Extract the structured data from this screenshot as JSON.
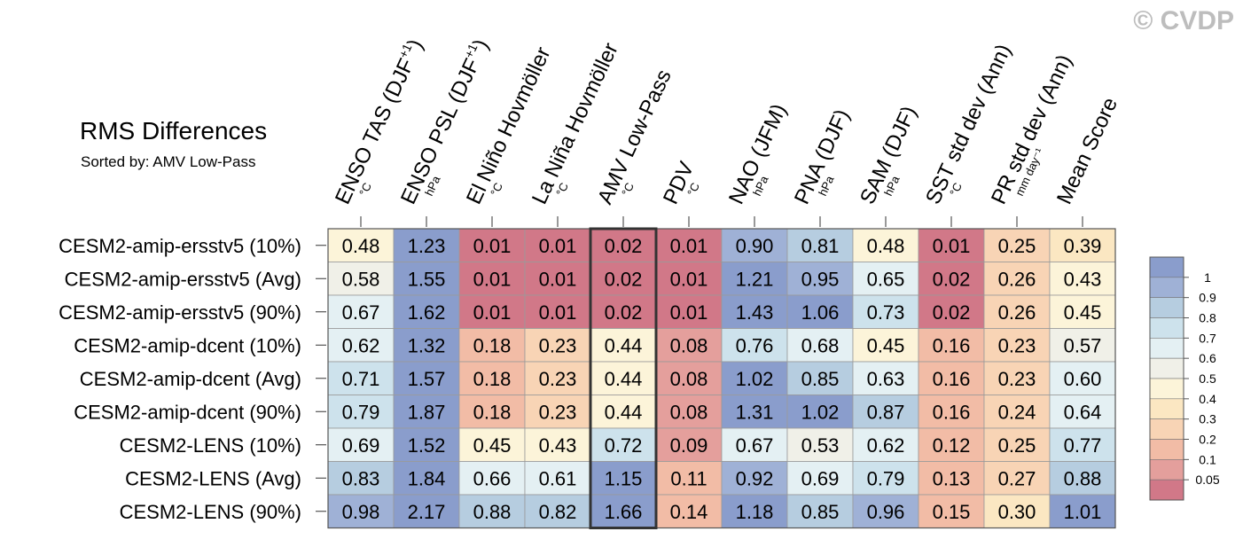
{
  "watermark": "© CVDP",
  "title": "RMS Differences",
  "subtitle": "Sorted by: AMV Low-Pass",
  "chart_data": {
    "type": "heatmap",
    "title": "RMS Differences",
    "subtitle": "Sorted by: AMV Low-Pass",
    "highlight_column": "AMV Low-Pass",
    "columns": [
      {
        "label": "ENSO TAS (DJF",
        "sup": "+1",
        "tail": ")",
        "unit": "°C"
      },
      {
        "label": "ENSO PSL (DJF",
        "sup": "+1",
        "tail": ")",
        "unit": "hPa"
      },
      {
        "label": "El Niño Hovmöller",
        "sup": "",
        "tail": "",
        "unit": "°C"
      },
      {
        "label": "La Niña Hovmöller",
        "sup": "",
        "tail": "",
        "unit": "°C"
      },
      {
        "label": "AMV Low-Pass",
        "sup": "",
        "tail": "",
        "unit": "°C"
      },
      {
        "label": "PDV",
        "sup": "",
        "tail": "",
        "unit": "°C"
      },
      {
        "label": "NAO (JFM)",
        "sup": "",
        "tail": "",
        "unit": "hPa"
      },
      {
        "label": "PNA (DJF)",
        "sup": "",
        "tail": "",
        "unit": "hPa"
      },
      {
        "label": "SAM (DJF)",
        "sup": "",
        "tail": "",
        "unit": "hPa"
      },
      {
        "label": "SST std dev (Ann)",
        "sup": "",
        "tail": "",
        "unit": "°C"
      },
      {
        "label": "PR std dev (Ann)",
        "sup": "",
        "tail": "",
        "unit": "mm day⁻¹"
      },
      {
        "label": "Mean Score",
        "sup": "",
        "tail": "",
        "unit": ""
      }
    ],
    "rows": [
      {
        "label": "CESM2-amip-ersstv5 (10%)",
        "values": [
          "0.48",
          "1.23",
          "0.01",
          "0.01",
          "0.02",
          "0.01",
          "0.90",
          "0.81",
          "0.48",
          "0.01",
          "0.25",
          "0.39"
        ]
      },
      {
        "label": "CESM2-amip-ersstv5 (Avg)",
        "values": [
          "0.58",
          "1.55",
          "0.01",
          "0.01",
          "0.02",
          "0.01",
          "1.21",
          "0.95",
          "0.65",
          "0.02",
          "0.26",
          "0.43"
        ]
      },
      {
        "label": "CESM2-amip-ersstv5 (90%)",
        "values": [
          "0.67",
          "1.62",
          "0.01",
          "0.01",
          "0.02",
          "0.01",
          "1.43",
          "1.06",
          "0.73",
          "0.02",
          "0.26",
          "0.45"
        ]
      },
      {
        "label": "CESM2-amip-dcent (10%)",
        "values": [
          "0.62",
          "1.32",
          "0.18",
          "0.23",
          "0.44",
          "0.08",
          "0.76",
          "0.68",
          "0.45",
          "0.16",
          "0.23",
          "0.57"
        ]
      },
      {
        "label": "CESM2-amip-dcent (Avg)",
        "values": [
          "0.71",
          "1.57",
          "0.18",
          "0.23",
          "0.44",
          "0.08",
          "1.02",
          "0.85",
          "0.63",
          "0.16",
          "0.23",
          "0.60"
        ]
      },
      {
        "label": "CESM2-amip-dcent (90%)",
        "values": [
          "0.79",
          "1.87",
          "0.18",
          "0.23",
          "0.44",
          "0.08",
          "1.31",
          "1.02",
          "0.87",
          "0.16",
          "0.24",
          "0.64"
        ]
      },
      {
        "label": "CESM2-LENS (10%)",
        "values": [
          "0.69",
          "1.52",
          "0.45",
          "0.43",
          "0.72",
          "0.09",
          "0.67",
          "0.53",
          "0.62",
          "0.12",
          "0.25",
          "0.77"
        ]
      },
      {
        "label": "CESM2-LENS (Avg)",
        "values": [
          "0.83",
          "1.84",
          "0.66",
          "0.61",
          "1.15",
          "0.11",
          "0.92",
          "0.69",
          "0.79",
          "0.13",
          "0.27",
          "0.88"
        ]
      },
      {
        "label": "CESM2-LENS (90%)",
        "values": [
          "0.98",
          "2.17",
          "0.88",
          "0.82",
          "1.66",
          "0.14",
          "1.18",
          "0.85",
          "0.96",
          "0.15",
          "0.30",
          "1.01"
        ]
      }
    ],
    "colorbar": {
      "labels": [
        "1",
        "0.9",
        "0.8",
        "0.7",
        "0.6",
        "0.5",
        "0.4",
        "0.3",
        "0.2",
        "0.1",
        "0.05"
      ],
      "thresholds": [
        0.05,
        0.1,
        0.2,
        0.3,
        0.4,
        0.5,
        0.6,
        0.7,
        0.8,
        0.9,
        1
      ],
      "colors": [
        "#d17888",
        "#e49f9c",
        "#f2bca6",
        "#f8d4b5",
        "#fbe7c2",
        "#fcf4d9",
        "#f0f0e8",
        "#e4f0f3",
        "#cde2ec",
        "#b6cde0",
        "#9fb1d6",
        "#8a9dcc"
      ]
    }
  }
}
